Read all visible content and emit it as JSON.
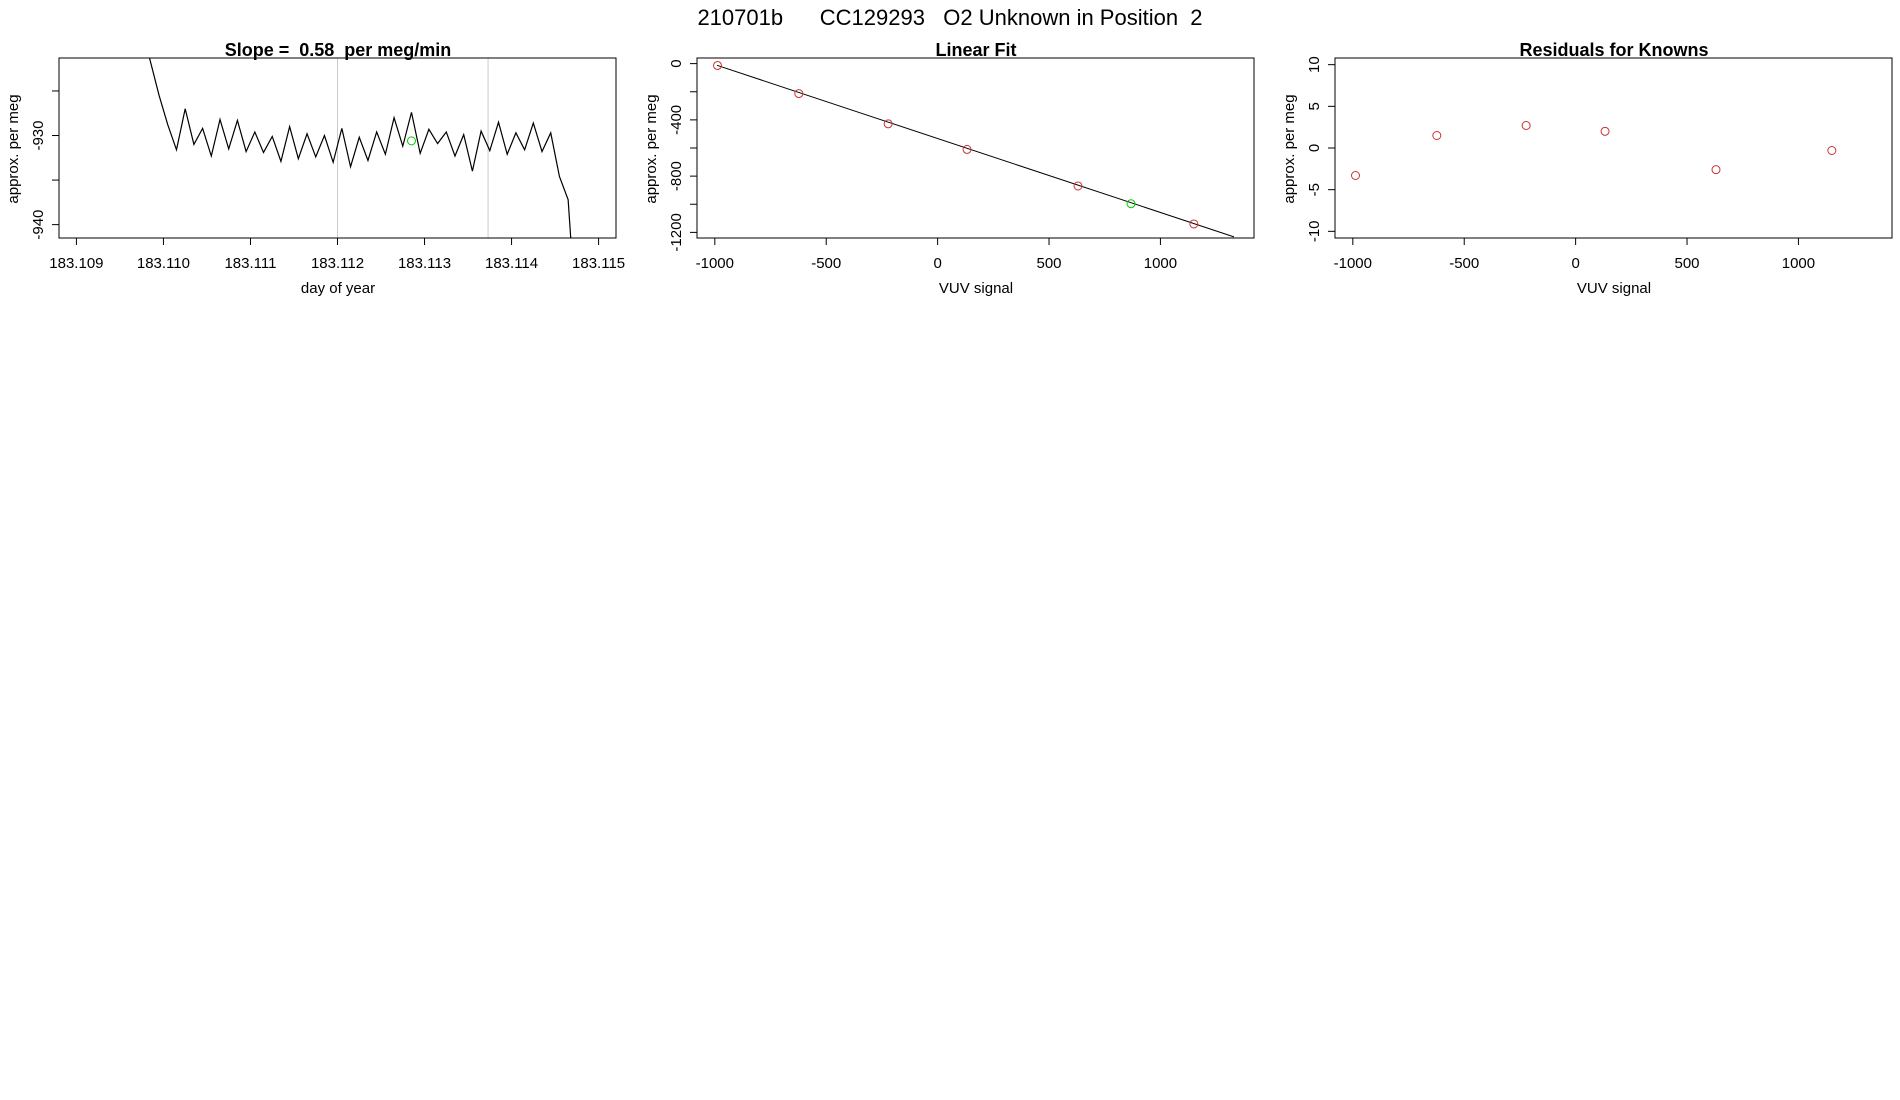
{
  "figure": {
    "title": "210701b      CC129293   O2 Unknown in Position  2"
  },
  "chart_data": [
    {
      "type": "line",
      "title": "Slope =  0.58  per meg/min",
      "xlabel": "day of year",
      "ylabel": "approx. per meg",
      "xlim": [
        183.1088,
        183.1152
      ],
      "ylim": [
        -941.5,
        -921.3
      ],
      "xticks": [
        "183.109",
        "183.110",
        "183.111",
        "183.112",
        "183.113",
        "183.114",
        "183.115"
      ],
      "xtick_values": [
        183.109,
        183.11,
        183.111,
        183.112,
        183.113,
        183.114,
        183.115
      ],
      "yticks": [
        "-930",
        "-940"
      ],
      "ytick_values": [
        -930,
        -940
      ],
      "yticks_unlabeled": [
        -925,
        -935
      ],
      "vlines": [
        183.112,
        183.11373
      ],
      "vline_color": "#cccccc",
      "line_color": "#000000",
      "x": [
        183.10984,
        183.10995,
        183.11005,
        183.11015,
        183.11025,
        183.11035,
        183.11045,
        183.11055,
        183.11065,
        183.11075,
        183.11085,
        183.11095,
        183.11105,
        183.11115,
        183.11125,
        183.11135,
        183.11145,
        183.11155,
        183.11165,
        183.11175,
        183.11185,
        183.11195,
        183.11205,
        183.11215,
        183.11225,
        183.11235,
        183.11245,
        183.11255,
        183.11265,
        183.11275,
        183.11285,
        183.11295,
        183.11305,
        183.11315,
        183.11325,
        183.11335,
        183.11345,
        183.11355,
        183.11365,
        183.11375,
        183.11385,
        183.11395,
        183.11405,
        183.11415,
        183.11425,
        183.11435,
        183.11445,
        183.11455,
        183.11465,
        183.11468
      ],
      "y": [
        -921.3,
        -925.5,
        -928.8,
        -931.6,
        -927.0,
        -931.0,
        -929.2,
        -932.3,
        -928.2,
        -931.5,
        -928.3,
        -931.8,
        -929.6,
        -931.9,
        -930.1,
        -932.9,
        -929.0,
        -932.6,
        -929.8,
        -932.4,
        -930.0,
        -933.0,
        -929.2,
        -933.5,
        -930.2,
        -932.8,
        -929.6,
        -932.1,
        -928.0,
        -931.2,
        -927.4,
        -932.0,
        -929.3,
        -930.9,
        -929.6,
        -932.3,
        -929.9,
        -934.0,
        -929.5,
        -931.7,
        -928.5,
        -932.1,
        -929.7,
        -931.6,
        -928.6,
        -931.8,
        -929.7,
        -934.6,
        -937.2,
        -941.5
      ],
      "highlight_points": [
        {
          "x": 183.11285,
          "y": -930.6,
          "color": "#00cc00"
        }
      ]
    },
    {
      "type": "scatter",
      "title": "Linear Fit",
      "xlabel": "VUV signal",
      "ylabel": "approx. per meg",
      "xlim": [
        -1080,
        1420
      ],
      "ylim": [
        -1240,
        40
      ],
      "xticks": [
        "-1000",
        "-500",
        "0",
        "500",
        "1000"
      ],
      "xtick_values": [
        -1000,
        -500,
        0,
        500,
        1000
      ],
      "yticks": [
        "0",
        "-400",
        "-800",
        "-1200"
      ],
      "ytick_values": [
        0,
        -400,
        -800,
        -1200
      ],
      "yticks_unlabeled": [
        -200,
        -600,
        -1000
      ],
      "fit_line": {
        "x": [
          -990,
          1330
        ],
        "y": [
          -12,
          -1232
        ]
      },
      "points": [
        {
          "x": -988,
          "y": -13,
          "color": "#cc3333"
        },
        {
          "x": -623,
          "y": -213,
          "color": "#cc3333"
        },
        {
          "x": -222,
          "y": -428,
          "color": "#cc3333"
        },
        {
          "x": 132,
          "y": -610,
          "color": "#cc3333"
        },
        {
          "x": 630,
          "y": -870,
          "color": "#cc3333"
        },
        {
          "x": 1150,
          "y": -1140,
          "color": "#cc3333"
        },
        {
          "x": 868,
          "y": -996,
          "color": "#00cc00"
        }
      ]
    },
    {
      "type": "scatter",
      "title": "Residuals for Knowns",
      "xlabel": "VUV signal",
      "ylabel": "approx. per meg",
      "xlim": [
        -1080,
        1420
      ],
      "ylim": [
        -10.8,
        10.8
      ],
      "xticks": [
        "-1000",
        "-500",
        "0",
        "500",
        "1000"
      ],
      "xtick_values": [
        -1000,
        -500,
        0,
        500,
        1000
      ],
      "yticks": [
        "10",
        "5",
        "0",
        "-5",
        "-10"
      ],
      "ytick_values": [
        10,
        5,
        0,
        -5,
        -10
      ],
      "yticks_unlabeled": [],
      "points": [
        {
          "x": -988,
          "y": -3.3,
          "color": "#cc3333"
        },
        {
          "x": -623,
          "y": 1.5,
          "color": "#cc3333"
        },
        {
          "x": -222,
          "y": 2.7,
          "color": "#cc3333"
        },
        {
          "x": 132,
          "y": 2.0,
          "color": "#cc3333"
        },
        {
          "x": 630,
          "y": -2.6,
          "color": "#cc3333"
        },
        {
          "x": 1150,
          "y": -0.3,
          "color": "#cc3333"
        }
      ]
    }
  ]
}
